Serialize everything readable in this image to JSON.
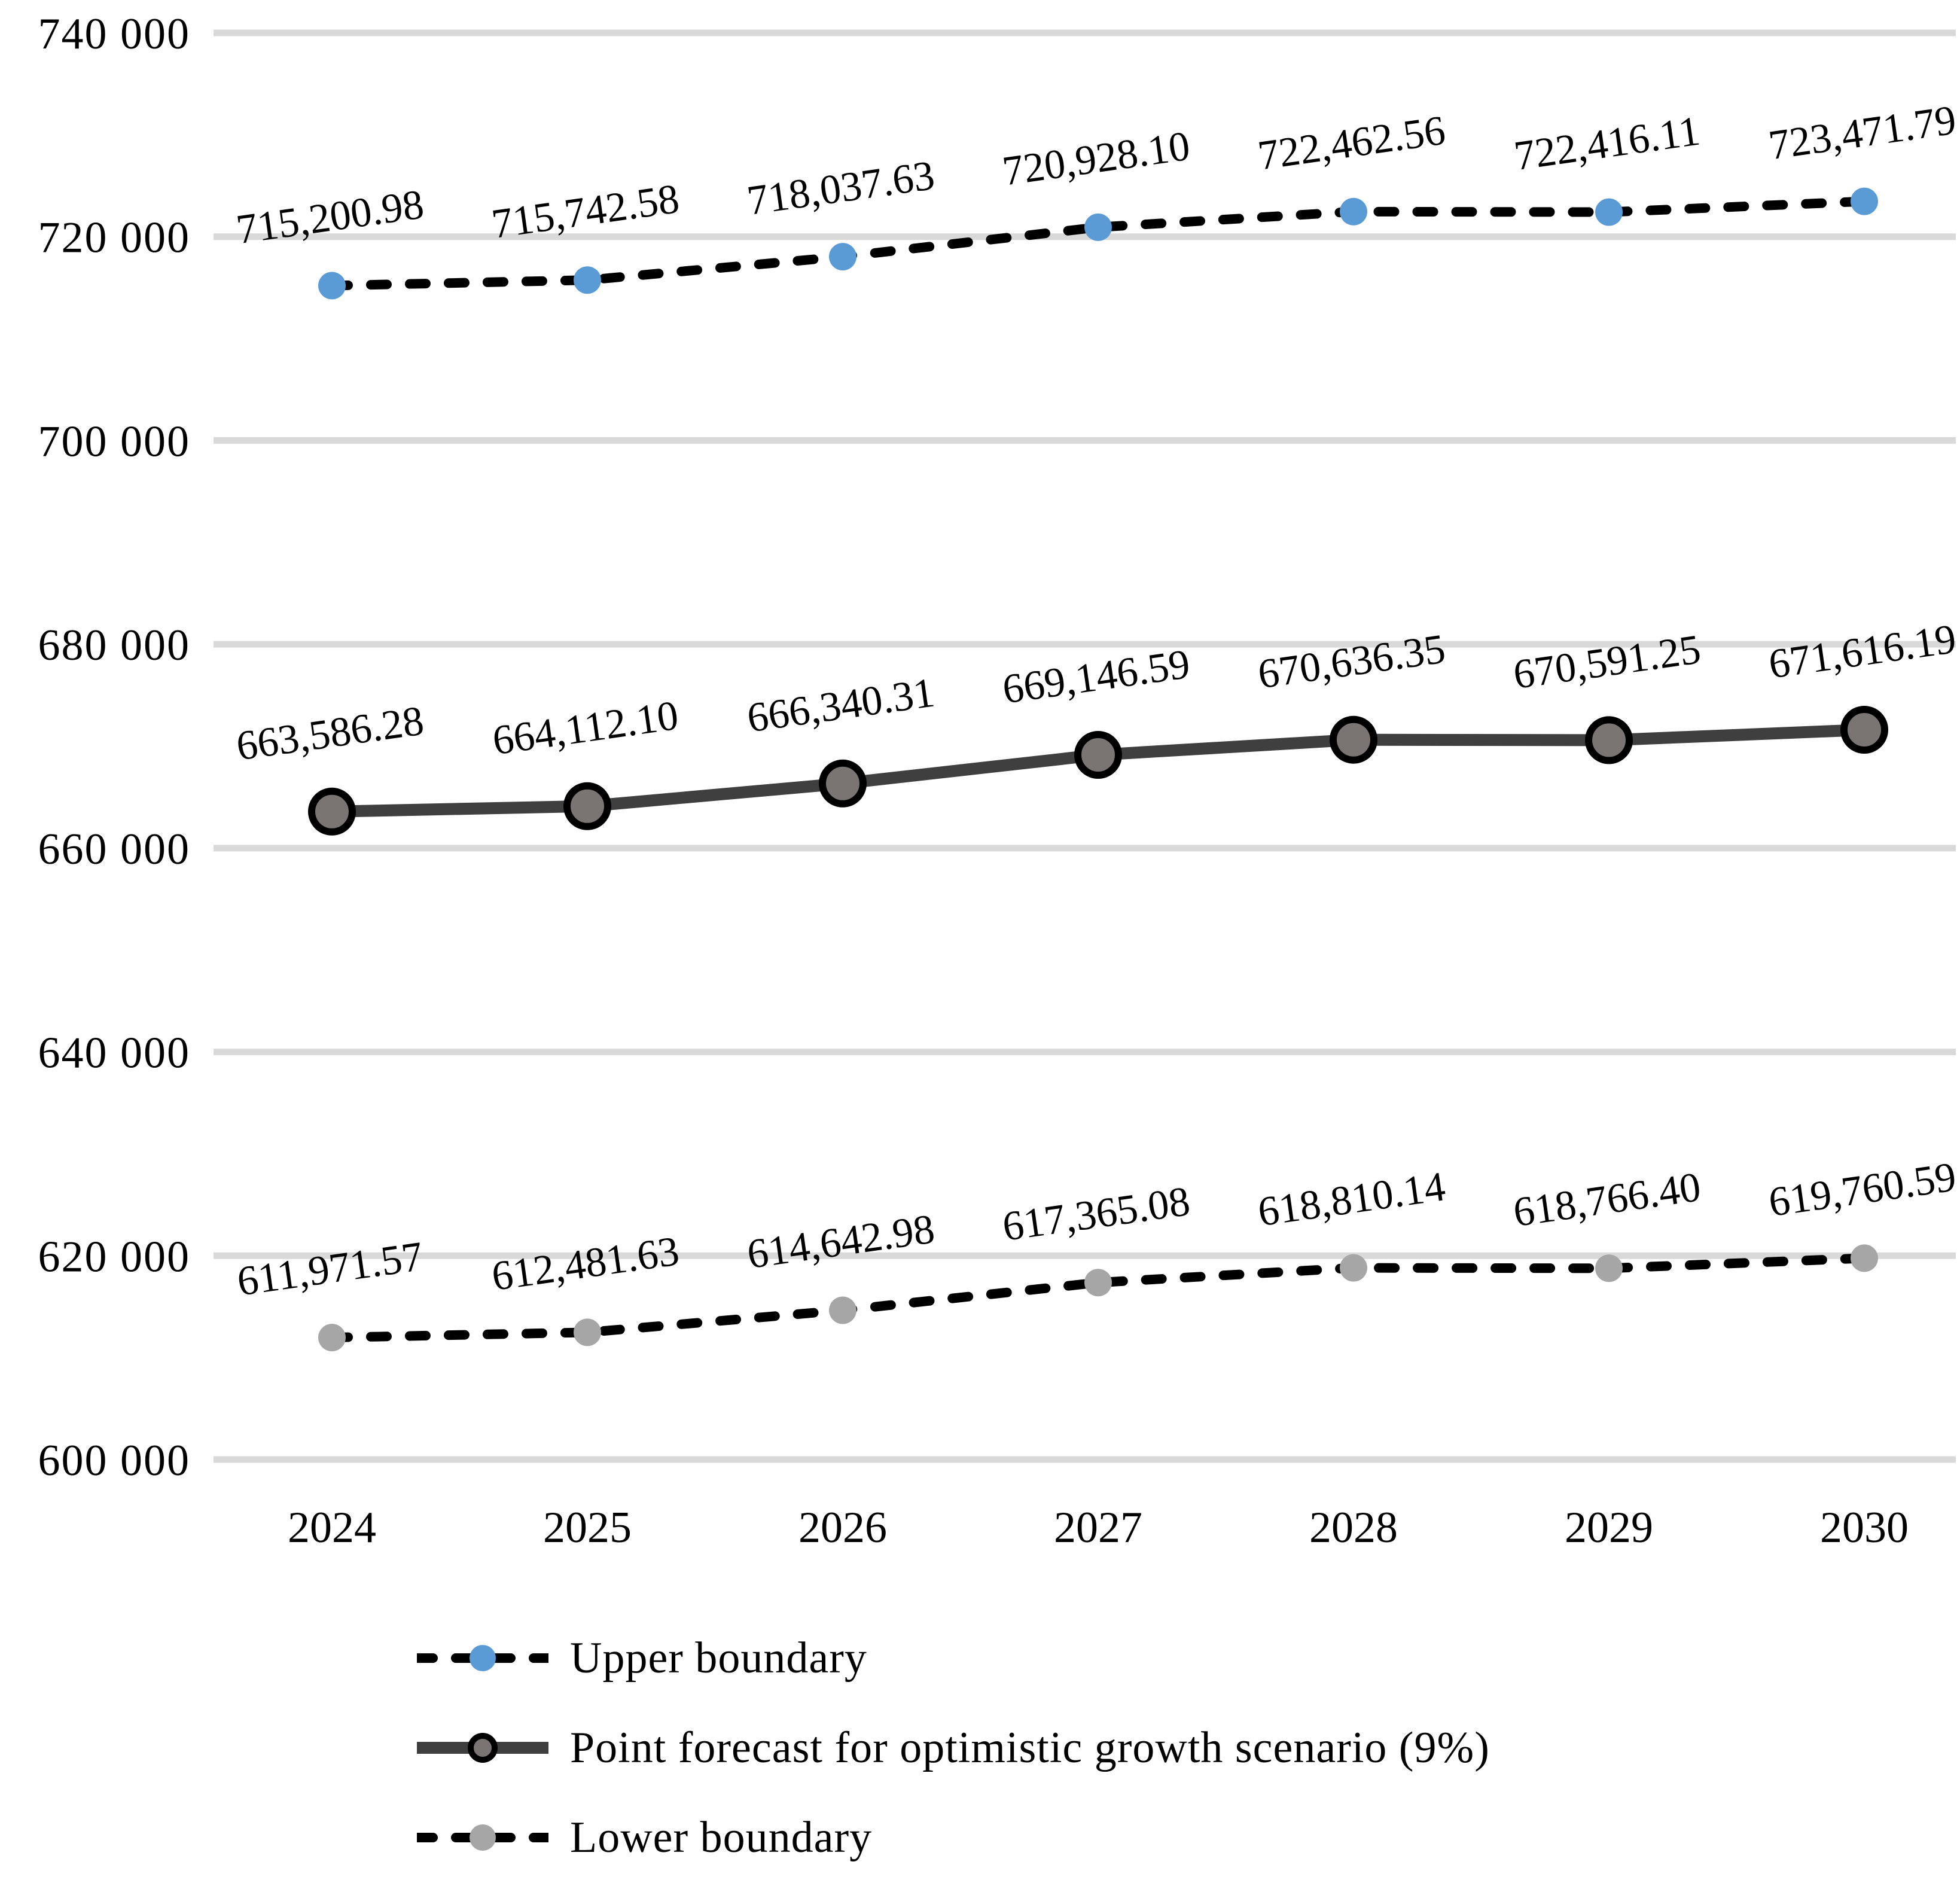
{
  "chart": {
    "background": "#FFFFFF",
    "grid_color": "#D9D9D9",
    "text_color": "#000000"
  },
  "chart_data": {
    "type": "line",
    "title": "",
    "categories": [
      "2024",
      "2025",
      "2026",
      "2027",
      "2028",
      "2029",
      "2030"
    ],
    "series": [
      {
        "name": "Upper boundary",
        "values": [
          715200.98,
          715742.58,
          718037.63,
          720928.1,
          722462.56,
          722416.11,
          723471.79
        ],
        "data_labels": [
          "715,200.98",
          "715,742.58",
          "718,037.63",
          "720,928.10",
          "722,462.56",
          "722,416.11",
          "723,471.79"
        ],
        "line_style": "dashed",
        "line_color": "#000000",
        "marker_color": "#5B9BD5",
        "marker_border_color": ""
      },
      {
        "name": "Point forecast for optimistic growth scenario (9%)",
        "values": [
          663586.28,
          664112.1,
          666340.31,
          669146.59,
          670636.35,
          670591.25,
          671616.19
        ],
        "data_labels": [
          "663,586.28",
          "664,112.10",
          "666,340.31",
          "669,146.59",
          "670,636.35",
          "670,591.25",
          "671,616.19"
        ],
        "line_style": "solid",
        "line_color": "#3F3F3F",
        "marker_color": "#7A7572",
        "marker_border_color": "#000000"
      },
      {
        "name": "Lower boundary",
        "values": [
          611971.57,
          612481.63,
          614642.98,
          617365.08,
          618810.14,
          618766.4,
          619760.59
        ],
        "data_labels": [
          "611,971.57",
          "612,481.63",
          "614,642.98",
          "617,365.08",
          "618,810.14",
          "618,766.40",
          "619,760.59"
        ],
        "line_style": "dashed",
        "line_color": "#000000",
        "marker_color": "#A6A6A6",
        "marker_border_color": ""
      }
    ],
    "y_axis": {
      "min": 600000,
      "max": 740000,
      "step": 20000,
      "tick_labels": [
        "740 000",
        "720 000",
        "700 000",
        "680 000",
        "660 000",
        "640 000",
        "620 000",
        "600 000"
      ]
    },
    "x_axis": {
      "tick_labels": [
        "2024",
        "2025",
        "2026",
        "2027",
        "2028",
        "2029",
        "2030"
      ]
    },
    "grid": true,
    "legend_position": "bottom-left"
  },
  "legend": {
    "items": [
      {
        "label": "Upper boundary"
      },
      {
        "label": "Point forecast for optimistic growth scenario (9%)"
      },
      {
        "label": "Lower boundary"
      }
    ]
  }
}
